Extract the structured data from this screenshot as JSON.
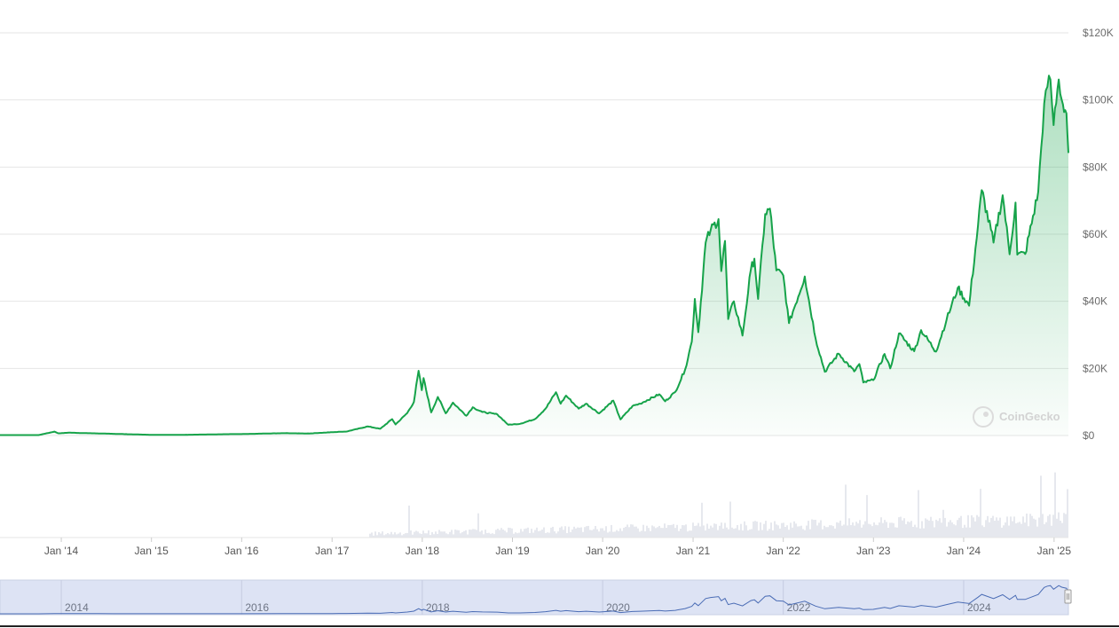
{
  "chart_data": {
    "type": "area",
    "title": "",
    "xlabel": "",
    "ylabel": "",
    "x_range": [
      "2013-04-28",
      "2025-02-28"
    ],
    "ylim": [
      0,
      120000
    ],
    "y_tick_values": [
      0,
      20000,
      40000,
      60000,
      80000,
      100000,
      120000
    ],
    "y_tick_labels": [
      "$0",
      "$20K",
      "$40K",
      "$60K",
      "$80K",
      "$100K",
      "$120K"
    ],
    "x_ticks": [
      {
        "label": "Jan '14",
        "date": "2014-01-01"
      },
      {
        "label": "Jan '15",
        "date": "2015-01-01"
      },
      {
        "label": "Jan '16",
        "date": "2016-01-01"
      },
      {
        "label": "Jan '17",
        "date": "2017-01-01"
      },
      {
        "label": "Jan '18",
        "date": "2018-01-01"
      },
      {
        "label": "Jan '19",
        "date": "2019-01-01"
      },
      {
        "label": "Jan '20",
        "date": "2020-01-01"
      },
      {
        "label": "Jan '21",
        "date": "2021-01-01"
      },
      {
        "label": "Jan '22",
        "date": "2022-01-01"
      },
      {
        "label": "Jan '23",
        "date": "2023-01-01"
      },
      {
        "label": "Jan '24",
        "date": "2024-01-01"
      },
      {
        "label": "Jan '25",
        "date": "2025-01-01"
      }
    ],
    "grid": true,
    "line_color": "#16a34a",
    "fill_color": "#16a34a",
    "volume_color": "#dcdfe6",
    "navigator_color": "#4a6cb5",
    "navigator_bg": "#dde3f4",
    "watermark": "CoinGecko",
    "series": [
      {
        "type": "line",
        "points": [
          [
            "2013-04-28",
            135
          ],
          [
            "2013-10-01",
            130
          ],
          [
            "2013-12-04",
            1150
          ],
          [
            "2013-12-20",
            650
          ],
          [
            "2014-02-01",
            850
          ],
          [
            "2014-06-01",
            620
          ],
          [
            "2014-10-01",
            380
          ],
          [
            "2015-01-14",
            180
          ],
          [
            "2015-06-01",
            230
          ],
          [
            "2015-11-04",
            400
          ],
          [
            "2016-01-01",
            430
          ],
          [
            "2016-06-15",
            700
          ],
          [
            "2016-10-01",
            610
          ],
          [
            "2017-01-01",
            1000
          ],
          [
            "2017-03-01",
            1200
          ],
          [
            "2017-05-25",
            2700
          ],
          [
            "2017-07-15",
            2000
          ],
          [
            "2017-09-01",
            4900
          ],
          [
            "2017-09-15",
            3300
          ],
          [
            "2017-11-01",
            6700
          ],
          [
            "2017-11-28",
            10000
          ],
          [
            "2017-12-17",
            19300
          ],
          [
            "2017-12-30",
            13500
          ],
          [
            "2018-01-06",
            17100
          ],
          [
            "2018-02-06",
            6900
          ],
          [
            "2018-03-05",
            11500
          ],
          [
            "2018-04-06",
            6600
          ],
          [
            "2018-05-05",
            9800
          ],
          [
            "2018-06-28",
            5900
          ],
          [
            "2018-07-24",
            8400
          ],
          [
            "2018-09-01",
            7000
          ],
          [
            "2018-11-01",
            6300
          ],
          [
            "2018-12-15",
            3200
          ],
          [
            "2019-02-01",
            3500
          ],
          [
            "2019-04-02",
            4900
          ],
          [
            "2019-05-15",
            8000
          ],
          [
            "2019-06-26",
            12900
          ],
          [
            "2019-07-15",
            9500
          ],
          [
            "2019-08-06",
            11900
          ],
          [
            "2019-09-26",
            8000
          ],
          [
            "2019-10-26",
            9500
          ],
          [
            "2019-12-18",
            6600
          ],
          [
            "2020-02-13",
            10400
          ],
          [
            "2020-03-13",
            4800
          ],
          [
            "2020-05-01",
            8800
          ],
          [
            "2020-06-01",
            9500
          ],
          [
            "2020-08-17",
            12300
          ],
          [
            "2020-09-10",
            10200
          ],
          [
            "2020-10-21",
            13000
          ],
          [
            "2020-11-30",
            19700
          ],
          [
            "2020-12-27",
            28000
          ],
          [
            "2021-01-08",
            40700
          ],
          [
            "2021-01-22",
            30800
          ],
          [
            "2021-02-21",
            57500
          ],
          [
            "2021-03-13",
            61200
          ],
          [
            "2021-04-14",
            64500
          ],
          [
            "2021-04-25",
            49000
          ],
          [
            "2021-05-10",
            58000
          ],
          [
            "2021-05-23",
            34700
          ],
          [
            "2021-06-15",
            40000
          ],
          [
            "2021-07-20",
            29800
          ],
          [
            "2021-08-23",
            49500
          ],
          [
            "2021-09-06",
            52700
          ],
          [
            "2021-09-21",
            40700
          ],
          [
            "2021-10-20",
            66000
          ],
          [
            "2021-11-08",
            67600
          ],
          [
            "2021-12-04",
            49200
          ],
          [
            "2022-01-01",
            47700
          ],
          [
            "2022-01-24",
            33500
          ],
          [
            "2022-03-29",
            47400
          ],
          [
            "2022-05-12",
            28900
          ],
          [
            "2022-06-18",
            19000
          ],
          [
            "2022-08-13",
            24400
          ],
          [
            "2022-10-15",
            19100
          ],
          [
            "2022-11-05",
            21300
          ],
          [
            "2022-11-21",
            15800
          ],
          [
            "2022-12-31",
            16500
          ],
          [
            "2023-02-15",
            24300
          ],
          [
            "2023-03-10",
            20000
          ],
          [
            "2023-04-14",
            30400
          ],
          [
            "2023-06-15",
            25100
          ],
          [
            "2023-07-13",
            31400
          ],
          [
            "2023-09-11",
            25000
          ],
          [
            "2023-10-24",
            34500
          ],
          [
            "2023-12-08",
            44000
          ],
          [
            "2024-01-23",
            38700
          ],
          [
            "2024-02-28",
            62500
          ],
          [
            "2024-03-14",
            73100
          ],
          [
            "2024-05-01",
            57500
          ],
          [
            "2024-06-07",
            71600
          ],
          [
            "2024-07-05",
            54000
          ],
          [
            "2024-07-29",
            69400
          ],
          [
            "2024-08-05",
            53900
          ],
          [
            "2024-09-06",
            54100
          ],
          [
            "2024-10-29",
            72700
          ],
          [
            "2024-11-22",
            98900
          ],
          [
            "2024-12-05",
            103900
          ],
          [
            "2024-12-17",
            106100
          ],
          [
            "2024-12-30",
            92500
          ],
          [
            "2025-01-20",
            106100
          ],
          [
            "2025-02-01",
            100000
          ],
          [
            "2025-02-20",
            96000
          ],
          [
            "2025-02-28",
            84200
          ]
        ]
      }
    ],
    "navigator": {
      "tick_labels": [
        {
          "label": "2014",
          "date": "2014-01-01"
        },
        {
          "label": "2016",
          "date": "2016-01-01"
        },
        {
          "label": "2018",
          "date": "2018-01-01"
        },
        {
          "label": "2020",
          "date": "2020-01-01"
        },
        {
          "label": "2022",
          "date": "2022-01-01"
        },
        {
          "label": "2024",
          "date": "2024-01-01"
        }
      ]
    }
  }
}
